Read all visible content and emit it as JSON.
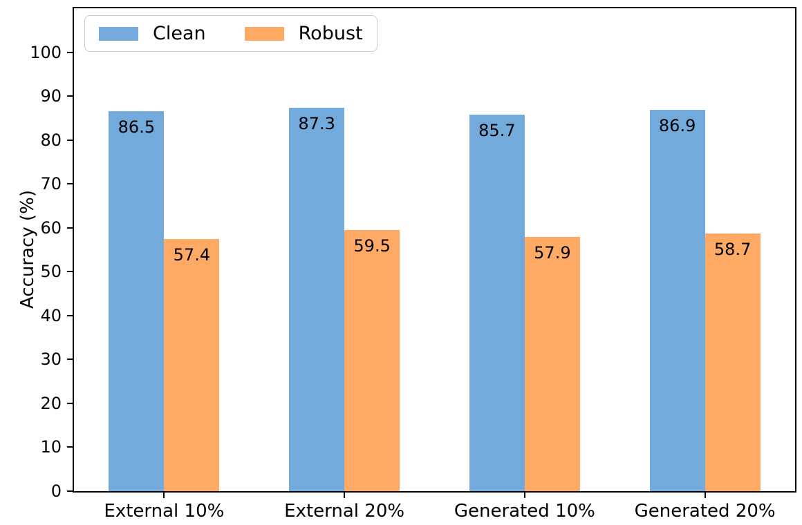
{
  "chart_data": {
    "type": "bar",
    "title": "",
    "xlabel": "",
    "ylabel": "Accuracy (%)",
    "categories": [
      "External 10%",
      "External 20%",
      "Generated 10%",
      "Generated 20%"
    ],
    "series": [
      {
        "name": "Clean",
        "color": "#73aadc",
        "values": [
          86.5,
          87.3,
          85.7,
          86.9
        ]
      },
      {
        "name": "Robust",
        "color": "#ffaa64",
        "values": [
          57.4,
          59.5,
          57.9,
          58.7
        ]
      }
    ],
    "ylim": [
      0,
      110
    ],
    "yticks": [
      0,
      10,
      20,
      30,
      40,
      50,
      60,
      70,
      80,
      90,
      100
    ],
    "grid": false,
    "legend_position": "upper-left",
    "bar_value_labels": true,
    "value_label_decimals": 1,
    "axis_color": "#000000",
    "legend_border_color": "#cccccc",
    "background_color": "#ffffff"
  }
}
